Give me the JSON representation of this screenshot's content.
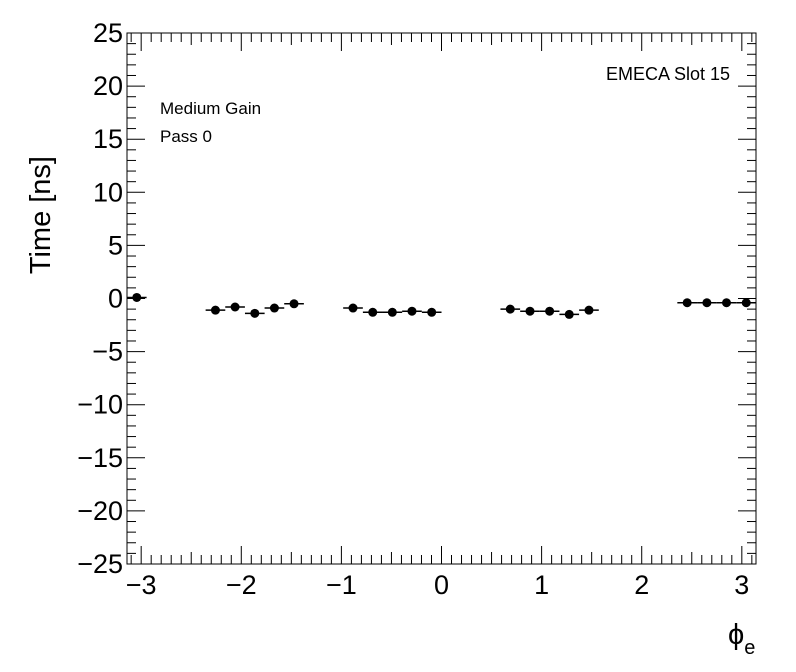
{
  "chart_data": {
    "type": "scatter",
    "annotations": {
      "top_right": "EMECA Slot 15",
      "line1": "Medium Gain",
      "line2": "Pass 0"
    },
    "ylabel": "Time [ns]",
    "xlabel_main": "ϕ",
    "xlabel_sub": "e",
    "xlim": [
      -3.1416,
      3.1416
    ],
    "ylim": [
      -25,
      25
    ],
    "xticks": [
      -3,
      -2,
      -1,
      0,
      1,
      2,
      3
    ],
    "xtick_labels": [
      "−3",
      "−2",
      "−1",
      "0",
      "1",
      "2",
      "3"
    ],
    "yticks": [
      -25,
      -20,
      -15,
      -10,
      -5,
      0,
      5,
      10,
      15,
      20,
      25
    ],
    "ytick_labels": [
      "−25",
      "−20",
      "−15",
      "−10",
      "−5",
      "0",
      "5",
      "10",
      "15",
      "20",
      "25"
    ],
    "bin_width": 0.19635,
    "points": [
      {
        "x": -3.044,
        "y": 0.1
      },
      {
        "x": -2.258,
        "y": -1.1
      },
      {
        "x": -2.062,
        "y": -0.8
      },
      {
        "x": -1.865,
        "y": -1.4
      },
      {
        "x": -1.669,
        "y": -0.9
      },
      {
        "x": -1.473,
        "y": -0.5
      },
      {
        "x": -0.884,
        "y": -0.9
      },
      {
        "x": -0.687,
        "y": -1.3
      },
      {
        "x": -0.491,
        "y": -1.3
      },
      {
        "x": -0.295,
        "y": -1.2
      },
      {
        "x": -0.098,
        "y": -1.3
      },
      {
        "x": 0.687,
        "y": -1.0
      },
      {
        "x": 0.884,
        "y": -1.2
      },
      {
        "x": 1.08,
        "y": -1.2
      },
      {
        "x": 1.276,
        "y": -1.5
      },
      {
        "x": 1.473,
        "y": -1.1
      },
      {
        "x": 2.454,
        "y": -0.4
      },
      {
        "x": 2.651,
        "y": -0.4
      },
      {
        "x": 2.847,
        "y": -0.4
      },
      {
        "x": 3.044,
        "y": -0.4
      }
    ],
    "grid": false,
    "marker_color": "#000000"
  }
}
